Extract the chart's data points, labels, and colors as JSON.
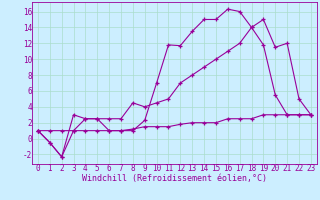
{
  "bg_color": "#cceeff",
  "grid_color": "#aaddcc",
  "line_color": "#990099",
  "spine_color": "#990099",
  "xlim": [
    -0.5,
    23.5
  ],
  "ylim": [
    -3.2,
    17.2
  ],
  "xticks": [
    0,
    1,
    2,
    3,
    4,
    5,
    6,
    7,
    8,
    9,
    10,
    11,
    12,
    13,
    14,
    15,
    16,
    17,
    18,
    19,
    20,
    21,
    22,
    23
  ],
  "yticks": [
    -2,
    0,
    2,
    4,
    6,
    8,
    10,
    12,
    14,
    16
  ],
  "xlabel": "Windchill (Refroidissement éolien,°C)",
  "line1_x": [
    0,
    1,
    2,
    3,
    4,
    5,
    6,
    7,
    8,
    9,
    10,
    11,
    12,
    13,
    14,
    15,
    16,
    17,
    18,
    19,
    20,
    21,
    22,
    23
  ],
  "line1_y": [
    1.0,
    -0.5,
    -2.3,
    3.0,
    2.5,
    2.5,
    1.0,
    1.0,
    1.0,
    2.3,
    7.0,
    11.8,
    11.7,
    13.5,
    15.0,
    15.0,
    16.3,
    16.0,
    14.0,
    11.8,
    5.5,
    3.0,
    3.0,
    3.0
  ],
  "line2_x": [
    0,
    1,
    2,
    3,
    4,
    5,
    6,
    7,
    8,
    9,
    10,
    11,
    12,
    13,
    14,
    15,
    16,
    17,
    18,
    19,
    20,
    21,
    22,
    23
  ],
  "line2_y": [
    1.0,
    -0.5,
    -2.3,
    1.0,
    2.5,
    2.5,
    2.5,
    2.5,
    4.5,
    4.0,
    4.5,
    5.0,
    7.0,
    8.0,
    9.0,
    10.0,
    11.0,
    12.0,
    14.0,
    15.0,
    11.5,
    12.0,
    5.0,
    3.0
  ],
  "line3_x": [
    0,
    1,
    2,
    3,
    4,
    5,
    6,
    7,
    8,
    9,
    10,
    11,
    12,
    13,
    14,
    15,
    16,
    17,
    18,
    19,
    20,
    21,
    22,
    23
  ],
  "line3_y": [
    1.0,
    1.0,
    1.0,
    1.0,
    1.0,
    1.0,
    1.0,
    1.0,
    1.2,
    1.5,
    1.5,
    1.5,
    1.8,
    2.0,
    2.0,
    2.0,
    2.5,
    2.5,
    2.5,
    3.0,
    3.0,
    3.0,
    3.0,
    3.0
  ],
  "tick_fontsize": 5.5,
  "xlabel_fontsize": 6.0,
  "marker_size": 3.5,
  "linewidth": 0.8
}
